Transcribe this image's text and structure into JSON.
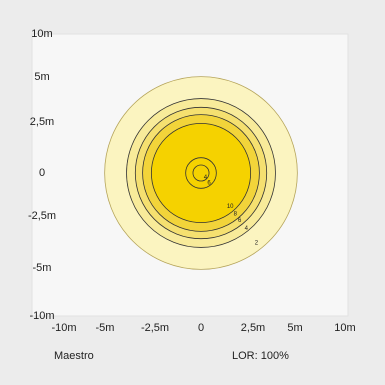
{
  "chart_data": {
    "type": "contour",
    "xlim": [
      -10,
      10
    ],
    "ylim": [
      -10,
      10
    ],
    "x_ticks": [
      {
        "value": -10,
        "label": "-10m"
      },
      {
        "value": -5,
        "label": "-5m"
      },
      {
        "value": -2.5,
        "label": "-2,5m"
      },
      {
        "value": 0,
        "label": "0"
      },
      {
        "value": 2.5,
        "label": "2,5m"
      },
      {
        "value": 5,
        "label": "5m"
      },
      {
        "value": 10,
        "label": "10m"
      }
    ],
    "y_ticks": [
      {
        "value": 10,
        "label": "10m"
      },
      {
        "value": 5,
        "label": "5m"
      },
      {
        "value": 2.5,
        "label": "2,5m"
      },
      {
        "value": 0,
        "label": "0"
      },
      {
        "value": -2.5,
        "label": "-2,5m"
      },
      {
        "value": -5,
        "label": "-5m"
      },
      {
        "value": -10,
        "label": "-10m"
      }
    ],
    "grid": false,
    "contours": [
      {
        "label": "2",
        "radius": 6.6,
        "fill": "#fbf4c0"
      },
      {
        "label": "4",
        "radius": 5.1,
        "fill": "#f8eb9a"
      },
      {
        "label": "6",
        "radius": 4.5,
        "fill": "#f5e070"
      },
      {
        "label": "8",
        "radius": 4.0,
        "fill": "#f2d43a"
      },
      {
        "label": "10",
        "radius": 3.4,
        "fill": "#f5d200"
      },
      {
        "label": "6",
        "radius": 1.05,
        "fill": "none"
      },
      {
        "label": "4",
        "radius": 0.55,
        "fill": "none"
      }
    ],
    "contour_label_positions": [
      {
        "label": "2",
        "x": 3.8,
        "y": -4.9
      },
      {
        "label": "4",
        "x": 3.1,
        "y": -3.9
      },
      {
        "label": "6",
        "x": 2.65,
        "y": -3.35
      },
      {
        "label": "8",
        "x": 2.35,
        "y": -2.9
      },
      {
        "label": "10",
        "x": 2.0,
        "y": -2.4
      },
      {
        "label": "6",
        "x": 0.55,
        "y": -0.8
      },
      {
        "label": "4",
        "x": 0.3,
        "y": -0.4
      }
    ]
  },
  "footer": {
    "left": "Maestro",
    "right": "LOR: 100%"
  }
}
